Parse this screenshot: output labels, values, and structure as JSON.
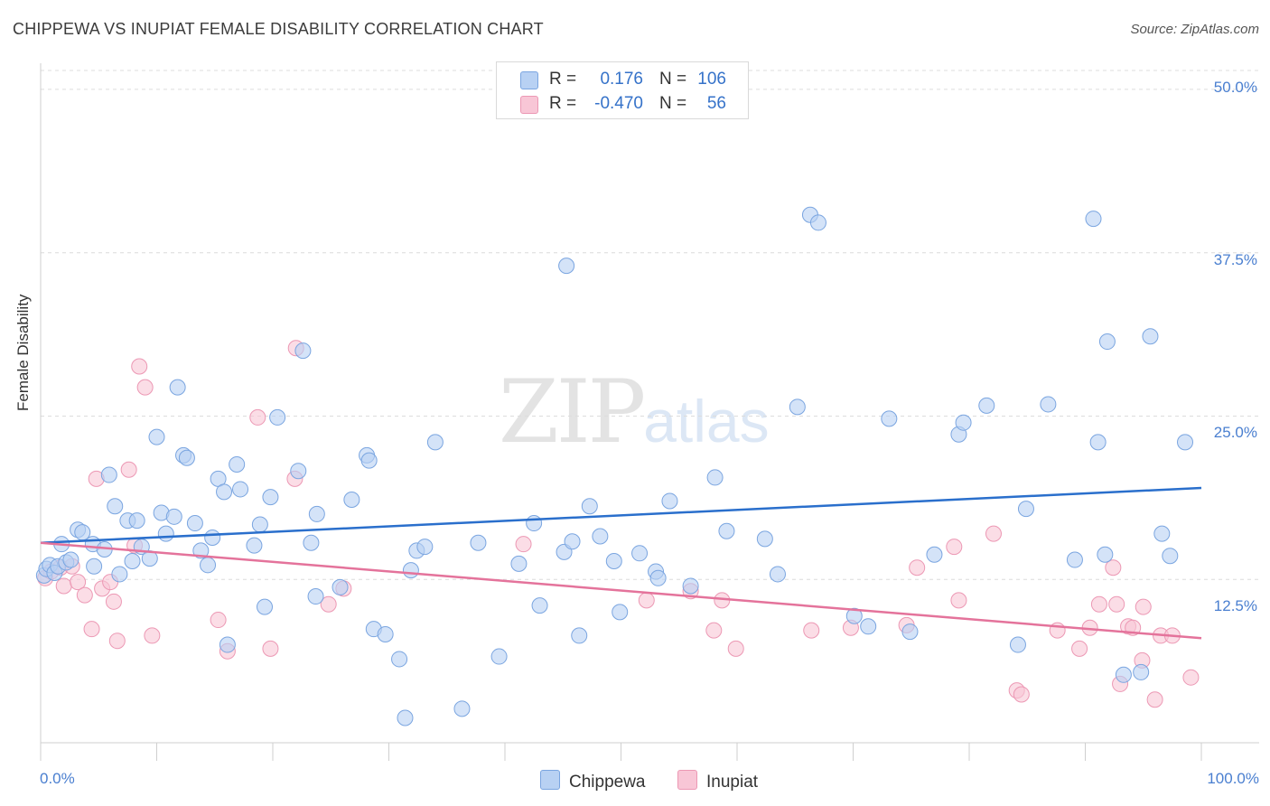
{
  "title": "CHIPPEWA VS INUPIAT FEMALE DISABILITY CORRELATION CHART",
  "source": "Source: ZipAtlas.com",
  "watermark": {
    "zip": "ZIP",
    "atlas": "atlas"
  },
  "legend": {
    "rows": [
      {
        "r_label": "R =",
        "r_value": "0.176",
        "n_label": "N =",
        "n_value": "106"
      },
      {
        "r_label": "R =",
        "r_value": "-0.470",
        "n_label": "N =",
        "n_value": "56"
      }
    ]
  },
  "bottom_legend": {
    "chippewa": "Chippewa",
    "inupiat": "Inupiat"
  },
  "colors": {
    "chippewa_fill": "#b8d1f3",
    "chippewa_stroke": "#7aa5e0",
    "chippewa_line": "#2a6fcc",
    "inupiat_fill": "#f8c6d6",
    "inupiat_stroke": "#ec98b4",
    "inupiat_line": "#e4739b",
    "grid": "#dcdcdc",
    "tick_text": "#4a7fd0"
  },
  "chart_data": {
    "type": "scatter",
    "title": "CHIPPEWA VS INUPIAT FEMALE DISABILITY CORRELATION CHART",
    "xlabel": "",
    "ylabel": "Female Disability",
    "xlim": [
      0,
      100
    ],
    "ylim": [
      0,
      52
    ],
    "x_tick_labels": [
      "0.0%",
      "100.0%"
    ],
    "y_ticks": [
      12.5,
      25.0,
      37.5,
      50.0
    ],
    "y_tick_labels": [
      "12.5%",
      "25.0%",
      "37.5%",
      "50.0%"
    ],
    "grid": true,
    "legend_position": "top-center",
    "series": [
      {
        "name": "Chippewa",
        "R": 0.176,
        "N": 106,
        "trend": {
          "x": [
            0,
            100
          ],
          "y": [
            15.3,
            19.5
          ]
        },
        "points": [
          [
            0.3,
            12.8
          ],
          [
            0.5,
            13.3
          ],
          [
            0.8,
            13.6
          ],
          [
            1.2,
            13.0
          ],
          [
            1.5,
            13.5
          ],
          [
            1.8,
            15.2
          ],
          [
            2.2,
            13.8
          ],
          [
            2.6,
            14.0
          ],
          [
            3.2,
            16.3
          ],
          [
            3.6,
            16.1
          ],
          [
            4.5,
            15.2
          ],
          [
            4.6,
            13.5
          ],
          [
            5.5,
            14.8
          ],
          [
            5.9,
            20.5
          ],
          [
            6.4,
            18.1
          ],
          [
            6.8,
            12.9
          ],
          [
            7.5,
            17.0
          ],
          [
            7.9,
            13.9
          ],
          [
            8.3,
            17.0
          ],
          [
            8.7,
            15.0
          ],
          [
            9.4,
            14.1
          ],
          [
            10.0,
            23.4
          ],
          [
            10.4,
            17.6
          ],
          [
            10.8,
            16.0
          ],
          [
            11.5,
            17.3
          ],
          [
            11.8,
            27.2
          ],
          [
            12.3,
            22.0
          ],
          [
            12.6,
            21.8
          ],
          [
            13.3,
            16.8
          ],
          [
            13.8,
            14.7
          ],
          [
            14.4,
            13.6
          ],
          [
            14.8,
            15.7
          ],
          [
            15.3,
            20.2
          ],
          [
            15.8,
            19.2
          ],
          [
            16.1,
            7.5
          ],
          [
            16.9,
            21.3
          ],
          [
            17.2,
            19.4
          ],
          [
            18.4,
            15.1
          ],
          [
            18.9,
            16.7
          ],
          [
            19.3,
            10.4
          ],
          [
            19.8,
            18.8
          ],
          [
            20.4,
            24.9
          ],
          [
            22.2,
            20.8
          ],
          [
            22.6,
            30.0
          ],
          [
            23.3,
            15.3
          ],
          [
            23.7,
            11.2
          ],
          [
            23.8,
            17.5
          ],
          [
            25.8,
            11.9
          ],
          [
            26.8,
            18.6
          ],
          [
            28.1,
            22.0
          ],
          [
            28.3,
            21.6
          ],
          [
            28.7,
            8.7
          ],
          [
            29.7,
            8.3
          ],
          [
            30.9,
            6.4
          ],
          [
            31.4,
            1.9
          ],
          [
            31.9,
            13.2
          ],
          [
            32.4,
            14.7
          ],
          [
            33.1,
            15.0
          ],
          [
            34.0,
            23.0
          ],
          [
            36.3,
            2.6
          ],
          [
            37.7,
            15.3
          ],
          [
            39.5,
            6.6
          ],
          [
            41.2,
            13.7
          ],
          [
            42.5,
            16.8
          ],
          [
            43.0,
            10.5
          ],
          [
            45.1,
            14.6
          ],
          [
            45.3,
            36.5
          ],
          [
            45.8,
            15.4
          ],
          [
            46.4,
            8.2
          ],
          [
            47.3,
            18.1
          ],
          [
            48.2,
            15.8
          ],
          [
            49.4,
            13.9
          ],
          [
            49.9,
            10.0
          ],
          [
            51.6,
            14.5
          ],
          [
            53.0,
            13.1
          ],
          [
            53.2,
            12.6
          ],
          [
            54.2,
            18.5
          ],
          [
            56.0,
            12.0
          ],
          [
            58.1,
            20.3
          ],
          [
            59.1,
            16.2
          ],
          [
            62.4,
            15.6
          ],
          [
            63.5,
            12.9
          ],
          [
            65.2,
            25.7
          ],
          [
            66.3,
            40.4
          ],
          [
            67.0,
            39.8
          ],
          [
            70.1,
            9.7
          ],
          [
            71.3,
            8.9
          ],
          [
            73.1,
            24.8
          ],
          [
            74.9,
            8.5
          ],
          [
            77.0,
            14.4
          ],
          [
            79.1,
            23.6
          ],
          [
            79.5,
            24.5
          ],
          [
            81.5,
            25.8
          ],
          [
            84.2,
            7.5
          ],
          [
            84.9,
            17.9
          ],
          [
            86.8,
            25.9
          ],
          [
            89.1,
            14.0
          ],
          [
            90.7,
            40.1
          ],
          [
            91.1,
            23.0
          ],
          [
            91.7,
            14.4
          ],
          [
            91.9,
            30.7
          ],
          [
            93.3,
            5.2
          ],
          [
            94.8,
            5.4
          ],
          [
            95.6,
            31.1
          ],
          [
            96.6,
            16.0
          ],
          [
            97.3,
            14.3
          ],
          [
            98.6,
            23.0
          ]
        ]
      },
      {
        "name": "Inupiat",
        "R": -0.47,
        "N": 56,
        "trend": {
          "x": [
            0,
            100
          ],
          "y": [
            15.3,
            8.0
          ]
        },
        "points": [
          [
            0.4,
            12.6
          ],
          [
            0.9,
            13.1
          ],
          [
            1.7,
            13.4
          ],
          [
            2.0,
            12.0
          ],
          [
            2.7,
            13.5
          ],
          [
            3.2,
            12.3
          ],
          [
            3.8,
            11.3
          ],
          [
            4.4,
            8.7
          ],
          [
            4.8,
            20.2
          ],
          [
            5.3,
            11.8
          ],
          [
            6.0,
            12.3
          ],
          [
            6.3,
            10.8
          ],
          [
            6.6,
            7.8
          ],
          [
            7.6,
            20.9
          ],
          [
            8.1,
            15.1
          ],
          [
            8.5,
            28.8
          ],
          [
            9.0,
            27.2
          ],
          [
            9.6,
            8.2
          ],
          [
            15.3,
            9.4
          ],
          [
            16.1,
            7.0
          ],
          [
            18.7,
            24.9
          ],
          [
            19.8,
            7.2
          ],
          [
            21.9,
            20.2
          ],
          [
            22.0,
            30.2
          ],
          [
            24.8,
            10.6
          ],
          [
            26.1,
            11.8
          ],
          [
            41.6,
            15.2
          ],
          [
            52.2,
            10.9
          ],
          [
            56.0,
            11.6
          ],
          [
            58.0,
            8.6
          ],
          [
            58.7,
            10.9
          ],
          [
            59.9,
            7.2
          ],
          [
            66.4,
            8.6
          ],
          [
            69.8,
            8.8
          ],
          [
            74.6,
            9.0
          ],
          [
            75.5,
            13.4
          ],
          [
            78.7,
            15.0
          ],
          [
            79.1,
            10.9
          ],
          [
            82.1,
            16.0
          ],
          [
            84.1,
            4.0
          ],
          [
            84.5,
            3.7
          ],
          [
            87.6,
            8.6
          ],
          [
            89.5,
            7.2
          ],
          [
            90.4,
            8.8
          ],
          [
            91.2,
            10.6
          ],
          [
            92.4,
            13.4
          ],
          [
            92.7,
            10.6
          ],
          [
            93.0,
            4.5
          ],
          [
            93.7,
            8.9
          ],
          [
            94.1,
            8.8
          ],
          [
            94.9,
            6.3
          ],
          [
            95.0,
            10.4
          ],
          [
            96.0,
            3.3
          ],
          [
            96.5,
            8.2
          ],
          [
            97.5,
            8.2
          ],
          [
            99.1,
            5.0
          ]
        ]
      }
    ]
  }
}
